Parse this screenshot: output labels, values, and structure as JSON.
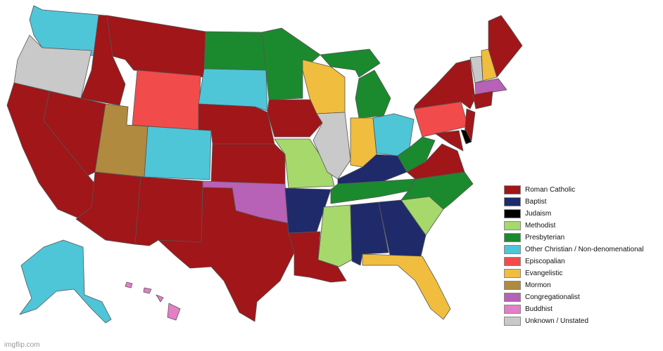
{
  "colors": {
    "roman_catholic": "#a01619",
    "baptist": "#1f2a6b",
    "judaism": "#000000",
    "methodist": "#a6d86b",
    "presbyterian": "#1b8a2e",
    "other_christian": "#4fc5d8",
    "episcopalian": "#f24b4b",
    "evangelistic": "#f1bd3e",
    "mormon": "#b08a3e",
    "congregationalist": "#b761b7",
    "buddhist": "#e47fc7",
    "unknown": "#c9c9c9"
  },
  "legend": [
    {
      "label": "Roman Catholic",
      "key": "roman_catholic"
    },
    {
      "label": "Baptist",
      "key": "baptist"
    },
    {
      "label": "Judaism",
      "key": "judaism"
    },
    {
      "label": "Methodist",
      "key": "methodist"
    },
    {
      "label": "Presbyterian",
      "key": "presbyterian"
    },
    {
      "label": "Other Christian / Non-denomenational",
      "key": "other_christian"
    },
    {
      "label": "Episcopalian",
      "key": "episcopalian"
    },
    {
      "label": "Evangelistic",
      "key": "evangelistic"
    },
    {
      "label": "Mormon",
      "key": "mormon"
    },
    {
      "label": "Congregationalist",
      "key": "congregationalist"
    },
    {
      "label": "Buddhist",
      "key": "buddhist"
    },
    {
      "label": "Unknown / Unstated",
      "key": "unknown"
    }
  ],
  "watermark": "imgflip.com"
}
